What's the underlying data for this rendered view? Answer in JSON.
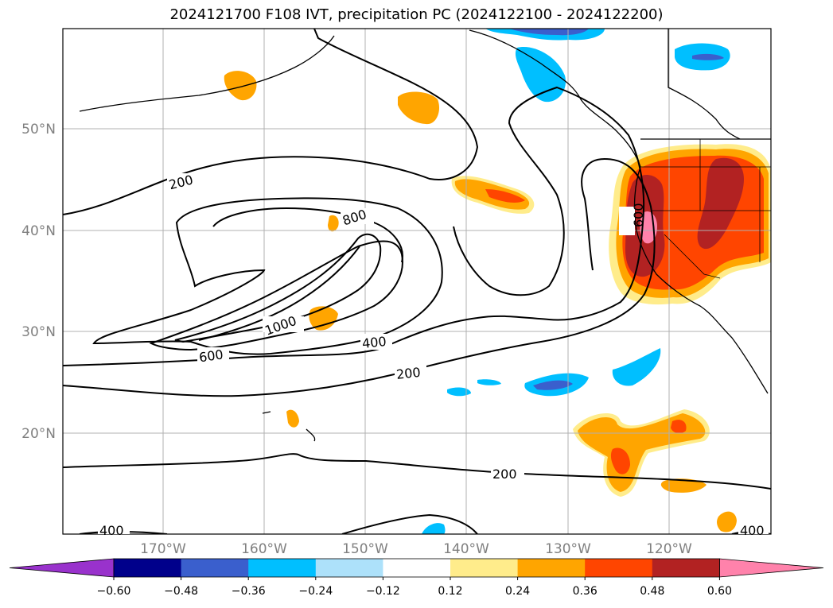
{
  "title": "2024121700 F108 IVT, precipitation PC (2024122100 - 2024122200)",
  "lat_labels": [
    "50°N",
    "40°N",
    "30°N",
    "20°N"
  ],
  "lon_labels": [
    "170°W",
    "160°W",
    "150°W",
    "140°W",
    "130°W",
    "120°W"
  ],
  "contour_labels": [
    "200",
    "800",
    "1000",
    "600",
    "400",
    "200",
    "200",
    "400",
    "600",
    "400"
  ],
  "colorbar": {
    "ticks": [
      "−0.60",
      "−0.48",
      "−0.36",
      "−0.24",
      "−0.12",
      "0.12",
      "0.24",
      "0.36",
      "0.48",
      "0.60"
    ],
    "colors": [
      "#9932CC",
      "#00008B",
      "#3A5FCD",
      "#00BFFF",
      "#ADE1FA",
      "#FFFFFF",
      "#FFEC8B",
      "#FFA500",
      "#FF4500",
      "#B22222",
      "#FF82AB"
    ]
  },
  "colors": {
    "grid": "#b0b0b0",
    "coast": "#000000",
    "contour": "#000000"
  }
}
